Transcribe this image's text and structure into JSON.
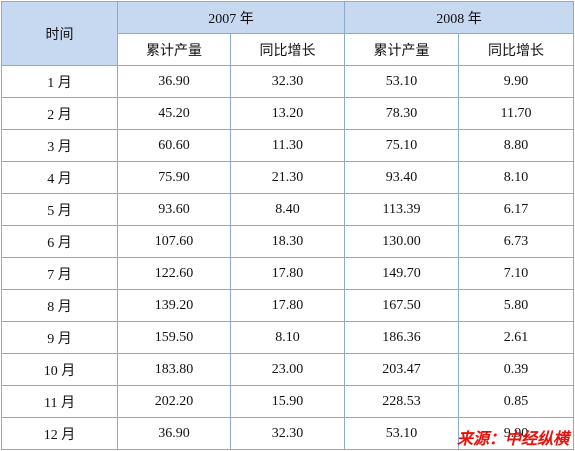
{
  "header": {
    "time": "时间",
    "groups": [
      "2007 年",
      "2008 年"
    ],
    "columns": [
      "累计产量",
      "同比增长",
      "累计产量",
      "同比增长"
    ]
  },
  "table": {
    "rows": [
      [
        "1 月",
        "36.90",
        "32.30",
        "53.10",
        "9.90"
      ],
      [
        "2 月",
        "45.20",
        "13.20",
        "78.30",
        "11.70"
      ],
      [
        "3 月",
        "60.60",
        "11.30",
        "75.10",
        "8.80"
      ],
      [
        "4 月",
        "75.90",
        "21.30",
        "93.40",
        "8.10"
      ],
      [
        "5 月",
        "93.60",
        "8.40",
        "113.39",
        "6.17"
      ],
      [
        "6 月",
        "107.60",
        "18.30",
        "130.00",
        "6.73"
      ],
      [
        "7 月",
        "122.60",
        "17.80",
        "149.70",
        "7.10"
      ],
      [
        "8 月",
        "139.20",
        "17.80",
        "167.50",
        "5.80"
      ],
      [
        "9 月",
        "159.50",
        "8.10",
        "186.36",
        "2.61"
      ],
      [
        "10 月",
        "183.80",
        "23.00",
        "203.47",
        "0.39"
      ],
      [
        "11 月",
        "202.20",
        "15.90",
        "228.53",
        "0.85"
      ],
      [
        "12 月",
        "36.90",
        "32.30",
        "53.10",
        "9.90"
      ]
    ]
  },
  "source": "来源：中经纵横"
}
